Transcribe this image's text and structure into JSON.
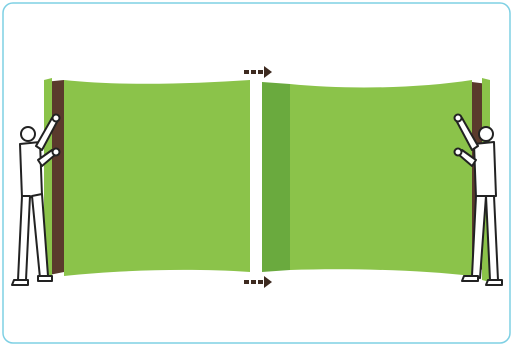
{
  "colors": {
    "frame_border": "#7fd0e4",
    "panel_green": "#8bc34a",
    "panel_dark_green": "#6aaa3e",
    "panel_back": "#5a3a2c",
    "arrow": "#3d2a20",
    "figure_stroke": "#222222",
    "figure_fill": "#ffffff"
  },
  "icons": {
    "left_person": "person-pulling-icon",
    "right_person": "person-pulling-icon",
    "top_arrow": "dashed-arrow-right-icon",
    "bottom_arrow": "dashed-arrow-right-icon"
  }
}
